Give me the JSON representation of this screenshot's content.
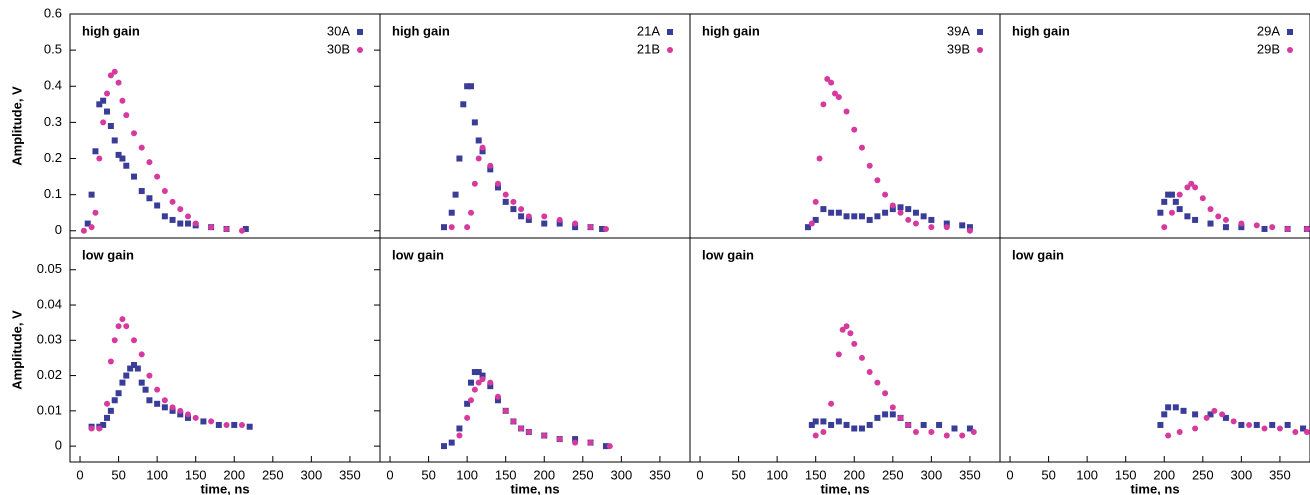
{
  "chart_data": [
    {
      "type": "scatter",
      "label": "high gain",
      "ylabel": "Amplitude, V",
      "xlim": [
        -13,
        389
      ],
      "ylim": [
        -0.02,
        0.6
      ],
      "yticks": [
        0,
        0.1,
        0.2,
        0.3,
        0.4,
        0.5,
        0.6
      ],
      "series": [
        {
          "name": "30A",
          "color": "#3a3d98",
          "marker": "square",
          "x": [
            10,
            15,
            20,
            25,
            30,
            35,
            40,
            45,
            50,
            55,
            60,
            70,
            80,
            90,
            100,
            110,
            120,
            130,
            140,
            150,
            170,
            190,
            215
          ],
          "values": [
            0.02,
            0.1,
            0.22,
            0.35,
            0.36,
            0.33,
            0.29,
            0.25,
            0.21,
            0.2,
            0.18,
            0.15,
            0.11,
            0.09,
            0.07,
            0.04,
            0.03,
            0.02,
            0.02,
            0.015,
            0.01,
            0.005,
            0.005
          ]
        },
        {
          "name": "30B",
          "color": "#d63a9e",
          "marker": "circle",
          "x": [
            5,
            15,
            20,
            25,
            30,
            35,
            40,
            45,
            50,
            55,
            60,
            70,
            80,
            90,
            100,
            110,
            120,
            130,
            140,
            150,
            170,
            190,
            210
          ],
          "values": [
            0,
            0.01,
            0.05,
            0.2,
            0.3,
            0.38,
            0.43,
            0.44,
            0.41,
            0.36,
            0.32,
            0.27,
            0.23,
            0.19,
            0.15,
            0.11,
            0.08,
            0.06,
            0.04,
            0.02,
            0.01,
            0.005,
            0
          ]
        }
      ]
    },
    {
      "type": "scatter",
      "label": "high gain",
      "xlim": [
        -13,
        389
      ],
      "ylim": [
        -0.02,
        0.6
      ],
      "series": [
        {
          "name": "21A",
          "color": "#3a3d98",
          "marker": "square",
          "x": [
            70,
            80,
            85,
            90,
            95,
            100,
            105,
            110,
            115,
            120,
            130,
            140,
            150,
            160,
            170,
            180,
            200,
            220,
            240,
            260,
            275
          ],
          "values": [
            0.01,
            0.05,
            0.1,
            0.2,
            0.35,
            0.4,
            0.4,
            0.3,
            0.25,
            0.22,
            0.17,
            0.12,
            0.08,
            0.06,
            0.04,
            0.03,
            0.02,
            0.02,
            0.01,
            0.01,
            0.005
          ]
        },
        {
          "name": "21B",
          "color": "#d63a9e",
          "marker": "circle",
          "x": [
            80,
            100,
            105,
            110,
            115,
            120,
            130,
            140,
            150,
            160,
            170,
            180,
            200,
            220,
            240,
            260,
            280
          ],
          "values": [
            0.01,
            0.01,
            0.05,
            0.13,
            0.2,
            0.23,
            0.18,
            0.13,
            0.1,
            0.08,
            0.06,
            0.04,
            0.04,
            0.03,
            0.02,
            0.01,
            0.005
          ]
        }
      ]
    },
    {
      "type": "scatter",
      "label": "high gain",
      "xlim": [
        -13,
        389
      ],
      "ylim": [
        -0.02,
        0.6
      ],
      "series": [
        {
          "name": "39A",
          "color": "#3a3d98",
          "marker": "square",
          "x": [
            140,
            150,
            160,
            170,
            180,
            190,
            200,
            210,
            220,
            230,
            240,
            250,
            260,
            270,
            280,
            290,
            300,
            320,
            340,
            350
          ],
          "values": [
            0.01,
            0.03,
            0.06,
            0.05,
            0.05,
            0.04,
            0.04,
            0.04,
            0.03,
            0.04,
            0.05,
            0.06,
            0.065,
            0.06,
            0.05,
            0.04,
            0.03,
            0.02,
            0.015,
            0.01
          ]
        },
        {
          "name": "39B",
          "color": "#d63a9e",
          "marker": "circle",
          "x": [
            145,
            150,
            155,
            160,
            165,
            170,
            175,
            180,
            190,
            200,
            210,
            220,
            230,
            240,
            250,
            260,
            270,
            280,
            300,
            320,
            350
          ],
          "values": [
            0.02,
            0.08,
            0.2,
            0.35,
            0.42,
            0.41,
            0.38,
            0.37,
            0.33,
            0.28,
            0.23,
            0.18,
            0.14,
            0.1,
            0.07,
            0.05,
            0.03,
            0.02,
            0.01,
            0.01,
            0
          ]
        }
      ]
    },
    {
      "type": "scatter",
      "label": "high gain",
      "xlim": [
        -13,
        389
      ],
      "ylim": [
        -0.02,
        0.6
      ],
      "series": [
        {
          "name": "29A",
          "color": "#3a3d98",
          "marker": "square",
          "x": [
            195,
            200,
            205,
            210,
            215,
            220,
            230,
            240,
            260,
            280,
            300,
            330,
            360,
            385
          ],
          "values": [
            0.05,
            0.08,
            0.1,
            0.1,
            0.08,
            0.06,
            0.04,
            0.03,
            0.02,
            0.01,
            0.01,
            0.005,
            0.005,
            0.005
          ]
        },
        {
          "name": "29B",
          "color": "#d63a9e",
          "marker": "circle",
          "x": [
            200,
            210,
            220,
            230,
            235,
            240,
            250,
            260,
            270,
            280,
            300,
            320,
            340,
            360,
            385
          ],
          "values": [
            0.01,
            0.05,
            0.1,
            0.12,
            0.13,
            0.12,
            0.09,
            0.06,
            0.04,
            0.03,
            0.02,
            0.015,
            0.01,
            0.005,
            0.005
          ]
        }
      ]
    },
    {
      "type": "scatter",
      "label": "low gain",
      "ylabel": "Amplitude, V",
      "xlabel": "time, ns",
      "xlim": [
        -13,
        389
      ],
      "ylim": [
        -0.0045,
        0.059
      ],
      "yticks": [
        0,
        0.01,
        0.02,
        0.03,
        0.04,
        0.05
      ],
      "xticks": [
        0,
        50,
        100,
        150,
        200,
        250,
        300,
        350
      ],
      "series": [
        {
          "color": "#3a3d98",
          "marker": "square",
          "x": [
            15,
            25,
            30,
            35,
            40,
            45,
            50,
            55,
            60,
            65,
            70,
            75,
            80,
            85,
            90,
            100,
            110,
            120,
            130,
            140,
            160,
            180,
            200,
            220
          ],
          "values": [
            0.0055,
            0.0055,
            0.006,
            0.008,
            0.01,
            0.013,
            0.015,
            0.018,
            0.02,
            0.022,
            0.023,
            0.022,
            0.018,
            0.016,
            0.013,
            0.012,
            0.011,
            0.01,
            0.009,
            0.008,
            0.007,
            0.006,
            0.006,
            0.0055
          ]
        },
        {
          "color": "#d63a9e",
          "marker": "circle",
          "x": [
            15,
            25,
            35,
            40,
            45,
            50,
            55,
            60,
            70,
            80,
            90,
            100,
            110,
            120,
            130,
            140,
            150,
            170,
            190,
            210
          ],
          "values": [
            0.005,
            0.005,
            0.012,
            0.024,
            0.03,
            0.034,
            0.036,
            0.034,
            0.03,
            0.026,
            0.02,
            0.016,
            0.013,
            0.011,
            0.01,
            0.009,
            0.008,
            0.007,
            0.006,
            0.006
          ]
        }
      ]
    },
    {
      "type": "scatter",
      "label": "low gain",
      "xlabel": "time, ns",
      "xlim": [
        -13,
        389
      ],
      "ylim": [
        -0.0045,
        0.059
      ],
      "xticks": [
        0,
        50,
        100,
        150,
        200,
        250,
        300,
        350
      ],
      "series": [
        {
          "color": "#3a3d98",
          "marker": "square",
          "x": [
            70,
            80,
            90,
            100,
            105,
            110,
            115,
            120,
            130,
            140,
            150,
            160,
            170,
            180,
            200,
            220,
            240,
            260,
            280
          ],
          "values": [
            0,
            0.001,
            0.005,
            0.012,
            0.018,
            0.021,
            0.021,
            0.02,
            0.017,
            0.013,
            0.01,
            0.007,
            0.005,
            0.004,
            0.003,
            0.002,
            0.002,
            0.001,
            0
          ]
        },
        {
          "color": "#d63a9e",
          "marker": "circle",
          "x": [
            90,
            100,
            105,
            110,
            115,
            120,
            130,
            140,
            150,
            160,
            170,
            180,
            200,
            220,
            240,
            260,
            285
          ],
          "values": [
            0.003,
            0.008,
            0.013,
            0.016,
            0.018,
            0.019,
            0.018,
            0.014,
            0.01,
            0.007,
            0.005,
            0.004,
            0.003,
            0.002,
            0.001,
            0.001,
            0
          ]
        }
      ]
    },
    {
      "type": "scatter",
      "label": "low gain",
      "xlabel": "time, ns",
      "xlim": [
        -13,
        389
      ],
      "ylim": [
        -0.0045,
        0.059
      ],
      "xticks": [
        0,
        50,
        100,
        150,
        200,
        250,
        300,
        350
      ],
      "series": [
        {
          "color": "#3a3d98",
          "marker": "square",
          "x": [
            145,
            150,
            160,
            170,
            180,
            190,
            200,
            210,
            220,
            230,
            240,
            250,
            260,
            270,
            290,
            310,
            330,
            350
          ],
          "values": [
            0.006,
            0.007,
            0.007,
            0.006,
            0.007,
            0.006,
            0.005,
            0.005,
            0.006,
            0.008,
            0.009,
            0.009,
            0.008,
            0.006,
            0.006,
            0.006,
            0.005,
            0.005
          ]
        },
        {
          "color": "#d63a9e",
          "marker": "circle",
          "x": [
            150,
            160,
            170,
            180,
            185,
            190,
            195,
            200,
            210,
            220,
            230,
            240,
            250,
            260,
            270,
            280,
            300,
            320,
            340,
            355
          ],
          "values": [
            0.003,
            0.004,
            0.012,
            0.026,
            0.033,
            0.034,
            0.032,
            0.029,
            0.025,
            0.021,
            0.018,
            0.015,
            0.011,
            0.008,
            0.006,
            0.004,
            0.004,
            0.003,
            0.003,
            0.004
          ]
        }
      ]
    },
    {
      "type": "scatter",
      "label": "low gain",
      "xlabel": "time, ns",
      "xlim": [
        -13,
        389
      ],
      "ylim": [
        -0.0045,
        0.059
      ],
      "xticks": [
        0,
        50,
        100,
        150,
        200,
        250,
        300,
        350
      ],
      "series": [
        {
          "color": "#3a3d98",
          "marker": "square",
          "x": [
            195,
            200,
            205,
            215,
            225,
            240,
            260,
            280,
            300,
            320,
            340,
            360,
            380
          ],
          "values": [
            0.006,
            0.009,
            0.011,
            0.011,
            0.01,
            0.009,
            0.009,
            0.008,
            0.006,
            0.006,
            0.006,
            0.006,
            0.005
          ]
        },
        {
          "color": "#d63a9e",
          "marker": "circle",
          "x": [
            205,
            220,
            240,
            255,
            265,
            275,
            290,
            310,
            330,
            350,
            370,
            385
          ],
          "values": [
            0.003,
            0.004,
            0.005,
            0.008,
            0.01,
            0.009,
            0.007,
            0.006,
            0.005,
            0.005,
            0.004,
            0.004
          ]
        }
      ]
    }
  ]
}
